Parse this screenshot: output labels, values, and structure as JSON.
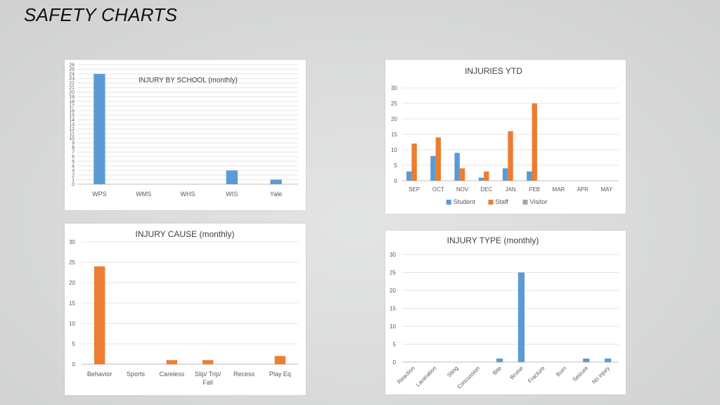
{
  "page": {
    "title": "SAFETY CHARTS"
  },
  "chart_data": [
    {
      "id": "school",
      "type": "bar",
      "title": "INJURY BY SCHOOL (monthly)",
      "categories": [
        "WPS",
        "WMS",
        "WHS",
        "WIS",
        "Yale"
      ],
      "series": [
        {
          "values": [
            24,
            0,
            0,
            3,
            1
          ],
          "color": "#5b9bd5"
        }
      ],
      "ylim": [
        0,
        26
      ],
      "ytick_step": 1,
      "grid": true
    },
    {
      "id": "ytd",
      "type": "bar",
      "title": "INJURIES  YTD",
      "categories": [
        "SEP",
        "OCT",
        "NOV",
        "DEC",
        "JAN",
        "FEB",
        "MAR",
        "APR",
        "MAY"
      ],
      "series": [
        {
          "name": "Student",
          "values": [
            3,
            8,
            9,
            1,
            4,
            3,
            0,
            0,
            0
          ],
          "color": "#5b9bd5"
        },
        {
          "name": "Staff",
          "values": [
            12,
            14,
            4,
            3,
            16,
            25,
            0,
            0,
            0
          ],
          "color": "#ed7d31"
        },
        {
          "name": "Visitor",
          "values": [
            0,
            0,
            0,
            0,
            0,
            0,
            0,
            0,
            0
          ],
          "color": "#a5a5a5"
        }
      ],
      "ylim": [
        0,
        30
      ],
      "ytick_step": 5,
      "grid": true,
      "legend": "bottom"
    },
    {
      "id": "cause",
      "type": "bar",
      "title": "INJURY CAUSE (monthly)",
      "categories": [
        "Behavior",
        "Sports",
        "Careless",
        "Slip/ Trip/ Fall",
        "Recess",
        "Play Eq"
      ],
      "category_lines": [
        [
          "Behavior"
        ],
        [
          "Sports"
        ],
        [
          "Careless"
        ],
        [
          "Slip/ Trip/",
          "Fall"
        ],
        [
          "Recess"
        ],
        [
          "Play Eq"
        ]
      ],
      "series": [
        {
          "values": [
            24,
            0,
            1,
            1,
            0,
            2
          ],
          "color": "#ed7d31"
        }
      ],
      "ylim": [
        0,
        30
      ],
      "ytick_step": 5,
      "grid": true
    },
    {
      "id": "type",
      "type": "bar",
      "title": "INJURY TYPE (monthly)",
      "categories": [
        "Reaction",
        "Laceration",
        "Sting",
        "Concussion",
        "Bite",
        "Bruise",
        "Fracture",
        "Burn",
        "Seizure",
        "No injury"
      ],
      "series": [
        {
          "values": [
            0,
            0,
            0,
            0,
            1,
            25,
            0,
            0,
            1,
            1
          ],
          "color": "#5b9bd5"
        }
      ],
      "ylim": [
        0,
        30
      ],
      "ytick_step": 5,
      "grid": true,
      "xlabel_rotation": -45
    }
  ]
}
